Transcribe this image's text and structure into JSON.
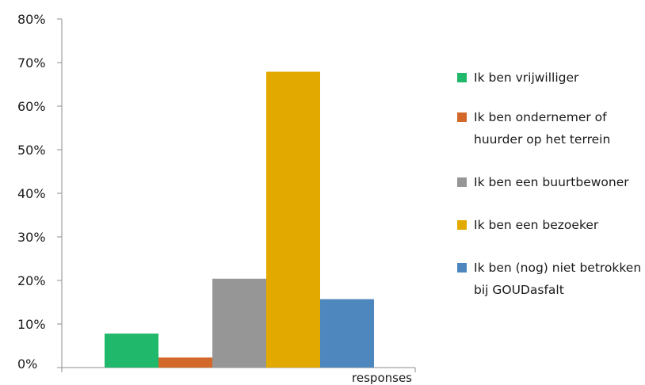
{
  "chart_data": {
    "type": "bar",
    "categories": [
      "responses"
    ],
    "xlabel": "responses",
    "ylim": [
      0,
      80
    ],
    "yticks": [
      "0%",
      "10%",
      "20%",
      "30%",
      "40%",
      "50%",
      "60%",
      "70%",
      "80%"
    ],
    "legend_position": "right",
    "grid": false,
    "series": [
      {
        "name": "Ik ben vrijwilliger",
        "color": "#20b86a",
        "values": [
          7.8
        ]
      },
      {
        "name": "Ik ben ondernemer of huurder op het terrein",
        "color": "#d2692a",
        "values": [
          2.3
        ]
      },
      {
        "name": "Ik ben een buurtbewoner",
        "color": "#969696",
        "values": [
          20.4
        ]
      },
      {
        "name": "Ik ben een bezoeker",
        "color": "#e2aa00",
        "values": [
          67.9
        ]
      },
      {
        "name": "Ik ben (nog) niet betrokken bij GOUDasfalt",
        "color": "#4d87bd",
        "values": [
          15.7
        ]
      }
    ]
  }
}
